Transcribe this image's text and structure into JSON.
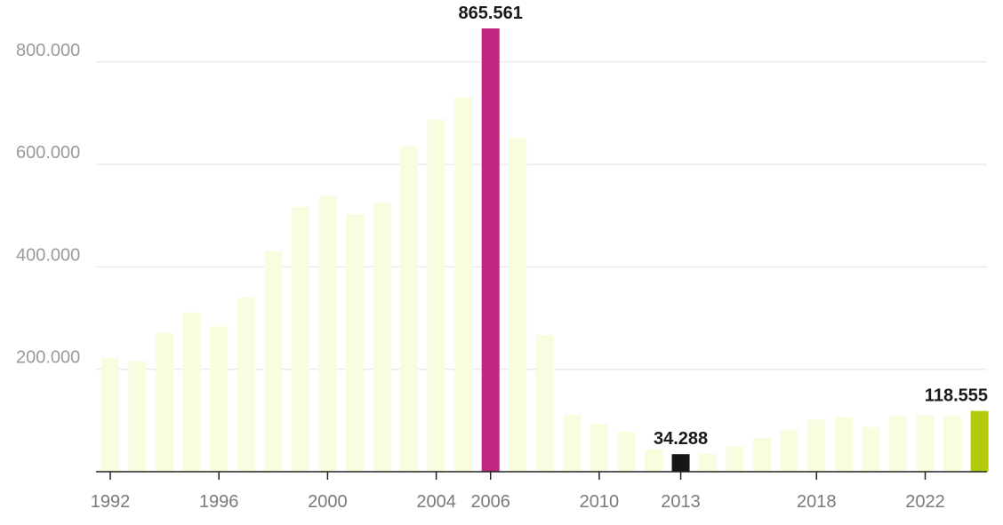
{
  "chart_data": {
    "type": "bar",
    "title": "",
    "xlabel": "",
    "ylabel": "",
    "ylim": [
      0,
      865561
    ],
    "grid": true,
    "x": [
      1992,
      1993,
      1994,
      1995,
      1996,
      1997,
      1998,
      1999,
      2000,
      2001,
      2002,
      2003,
      2004,
      2005,
      2006,
      2007,
      2008,
      2009,
      2010,
      2011,
      2012,
      2013,
      2014,
      2015,
      2016,
      2017,
      2018,
      2019,
      2020,
      2021,
      2022,
      2023,
      2024
    ],
    "values": [
      222000,
      216000,
      271000,
      311000,
      284000,
      340000,
      431000,
      517000,
      538000,
      503000,
      525000,
      636000,
      688000,
      731000,
      865561,
      652000,
      267000,
      111000,
      93000,
      78000,
      43000,
      34288,
      35000,
      50000,
      66000,
      81000,
      102000,
      107000,
      87000,
      108000,
      111000,
      110000,
      118555
    ],
    "x_tick_labels": [
      {
        "year": 1992,
        "label": "1992"
      },
      {
        "year": 1996,
        "label": "1996"
      },
      {
        "year": 2000,
        "label": "2000"
      },
      {
        "year": 2004,
        "label": "2004"
      },
      {
        "year": 2006,
        "label": "2006"
      },
      {
        "year": 2010,
        "label": "2010"
      },
      {
        "year": 2013,
        "label": "2013"
      },
      {
        "year": 2018,
        "label": "2018"
      },
      {
        "year": 2022,
        "label": "2022"
      }
    ],
    "y_ticks": [
      {
        "value": 200000,
        "label": "200.000"
      },
      {
        "value": 400000,
        "label": "400.000"
      },
      {
        "value": 600000,
        "label": "600.000"
      },
      {
        "value": 800000,
        "label": "800.000"
      }
    ],
    "annotations": [
      {
        "year": 2006,
        "text": "865.561"
      },
      {
        "year": 2013,
        "text": "34.288"
      },
      {
        "year": 2024,
        "text": "118.555"
      }
    ],
    "colors": {
      "default": "#f8fde0",
      "highlights": {
        "2006": "#c0267f",
        "2013": "#161616",
        "2024": "#b2cc0c"
      }
    }
  }
}
